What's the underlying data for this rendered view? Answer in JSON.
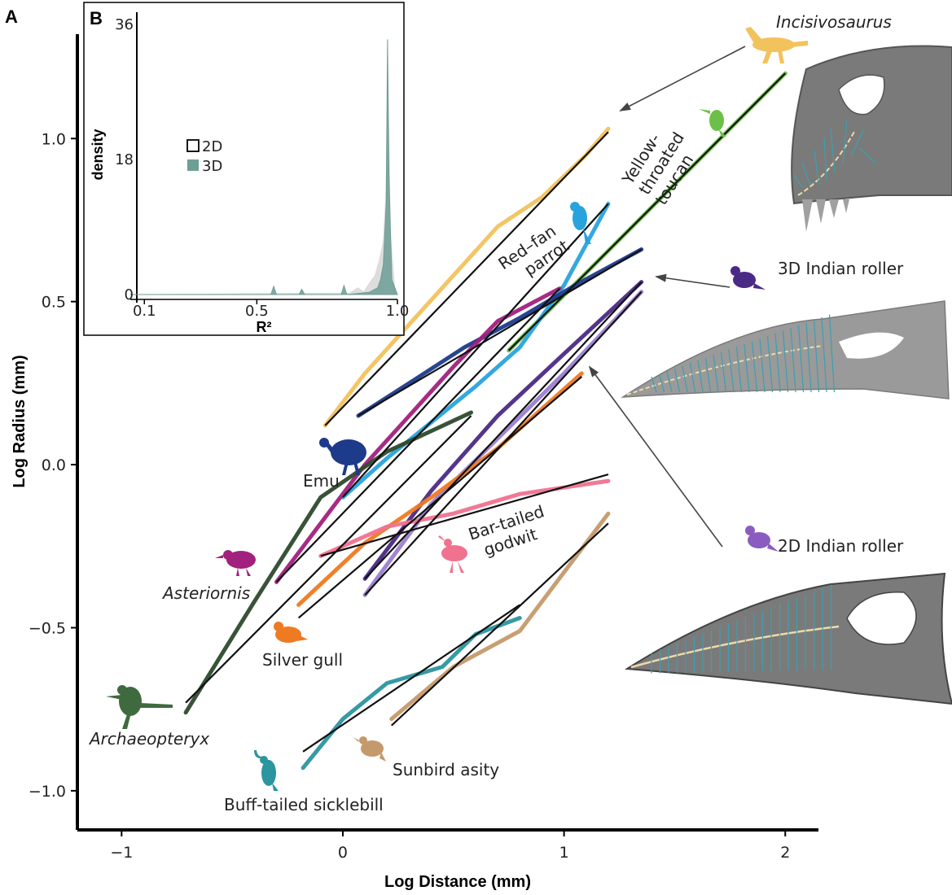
{
  "panel_a": {
    "letter": "A"
  },
  "panel_b": {
    "letter": "B"
  },
  "chart_data": [
    {
      "type": "line",
      "xlabel": "Log Distance (mm)",
      "ylabel": "Log Radius (mm)",
      "xlim": [
        -1.2,
        2.15
      ],
      "ylim": [
        -1.12,
        1.32
      ],
      "xticks": [
        -1,
        0,
        1,
        2
      ],
      "xtick_labels": [
        "−1",
        "0",
        "1",
        "2"
      ],
      "yticks": [
        -1.0,
        -0.5,
        0.0,
        0.5,
        1.0
      ],
      "ytick_labels": [
        "−1.0",
        "−0.5",
        "0.0",
        "0.5",
        "1.0"
      ],
      "series": [
        {
          "name": "Incisivosaurus",
          "color": "#f2c25c",
          "x": [
            -0.08,
            0.1,
            0.3,
            0.5,
            0.7,
            0.9,
            1.1,
            1.2
          ],
          "y": [
            0.12,
            0.28,
            0.43,
            0.58,
            0.73,
            0.82,
            0.95,
            1.03
          ],
          "fit_x": [
            -0.08,
            1.2
          ],
          "fit_y": [
            0.12,
            1.02
          ]
        },
        {
          "name": "Yellow-throated toucan",
          "color": "#6cc04a",
          "x": [
            0.75,
            1.0,
            1.25,
            1.5,
            1.75,
            2.0
          ],
          "y": [
            0.35,
            0.52,
            0.69,
            0.86,
            1.03,
            1.2
          ],
          "fit_x": [
            0.75,
            2.0
          ],
          "fit_y": [
            0.35,
            1.2
          ]
        },
        {
          "name": "Red-fan parrot",
          "color": "#29a3dd",
          "x": [
            0.0,
            0.2,
            0.4,
            0.6,
            0.8,
            1.0,
            1.2
          ],
          "y": [
            -0.1,
            0.02,
            0.13,
            0.24,
            0.36,
            0.55,
            0.8
          ],
          "fit_x": [
            0.0,
            1.2
          ],
          "fit_y": [
            -0.1,
            0.8
          ]
        },
        {
          "name": "Emu",
          "color": "#1e3a8a",
          "x": [
            0.07,
            0.3,
            0.55,
            0.8,
            1.05,
            1.35
          ],
          "y": [
            0.15,
            0.25,
            0.36,
            0.45,
            0.55,
            0.66
          ],
          "fit_x": [
            0.07,
            1.35
          ],
          "fit_y": [
            0.15,
            0.66
          ]
        },
        {
          "name": "Asteriornis",
          "color": "#a2207e",
          "x": [
            -0.3,
            -0.1,
            0.1,
            0.3,
            0.5,
            0.7,
            0.98
          ],
          "y": [
            -0.36,
            -0.18,
            0.0,
            0.15,
            0.3,
            0.44,
            0.54
          ],
          "fit_x": [
            -0.3,
            0.98
          ],
          "fit_y": [
            -0.36,
            0.54
          ]
        },
        {
          "name": "Archaeopteryx",
          "color": "#2d4a2d",
          "x": [
            -0.71,
            -0.4,
            -0.1,
            0.2,
            0.58
          ],
          "y": [
            -0.76,
            -0.42,
            -0.1,
            0.04,
            0.16
          ],
          "fit_x": [
            -0.71,
            0.58
          ],
          "fit_y": [
            -0.73,
            0.15
          ]
        },
        {
          "name": "3D Indian roller",
          "color": "#4b2a85",
          "x": [
            0.1,
            0.4,
            0.7,
            1.0,
            1.35
          ],
          "y": [
            -0.35,
            -0.08,
            0.15,
            0.34,
            0.56
          ],
          "fit_x": [
            0.1,
            1.35
          ],
          "fit_y": [
            -0.35,
            0.56
          ]
        },
        {
          "name": "2D Indian roller",
          "color": "#9b7fd0",
          "x": [
            0.1,
            0.4,
            0.7,
            1.0,
            1.35
          ],
          "y": [
            -0.4,
            -0.12,
            0.08,
            0.28,
            0.53
          ],
          "fit_x": [
            0.1,
            1.35
          ],
          "fit_y": [
            -0.4,
            0.53
          ]
        },
        {
          "name": "Silver gull",
          "color": "#ee7a22",
          "x": [
            -0.2,
            0.1,
            0.4,
            0.7,
            1.08
          ],
          "y": [
            -0.43,
            -0.24,
            -0.1,
            0.05,
            0.28
          ],
          "fit_x": [
            -0.2,
            1.08
          ],
          "fit_y": [
            -0.47,
            0.27
          ]
        },
        {
          "name": "Bar-tailed godwit",
          "color": "#f0728f",
          "x": [
            -0.1,
            0.2,
            0.5,
            0.8,
            1.2
          ],
          "y": [
            -0.28,
            -0.19,
            -0.15,
            -0.09,
            -0.05
          ],
          "fit_x": [
            -0.1,
            1.2
          ],
          "fit_y": [
            -0.28,
            -0.03
          ]
        },
        {
          "name": "Buff-tailed sicklebill",
          "color": "#2b95a0",
          "x": [
            -0.18,
            0.0,
            0.2,
            0.45,
            0.6,
            0.8
          ],
          "y": [
            -0.93,
            -0.78,
            -0.67,
            -0.62,
            -0.52,
            -0.47
          ],
          "fit_x": [
            -0.18,
            0.8
          ],
          "fit_y": [
            -0.88,
            -0.43
          ]
        },
        {
          "name": "Sunbird asity",
          "color": "#c49a6c",
          "x": [
            0.22,
            0.5,
            0.8,
            1.0,
            1.2
          ],
          "y": [
            -0.78,
            -0.62,
            -0.51,
            -0.33,
            -0.15
          ],
          "fit_x": [
            0.22,
            1.2
          ],
          "fit_y": [
            -0.8,
            -0.18
          ]
        }
      ],
      "annotations": [
        {
          "text": "Incisivosaurus",
          "italic": true
        },
        {
          "text": "Yellow-\nthroated\ntoucan",
          "italic": false
        },
        {
          "text": "Red–fan\nparrot",
          "italic": false
        },
        {
          "text": "3D Indian roller",
          "italic": false
        },
        {
          "text": "2D Indian roller",
          "italic": false
        },
        {
          "text": "Emu",
          "italic": false
        },
        {
          "text": "Bar-tailed\ngodwit",
          "italic": false
        },
        {
          "text": "Asteriornis",
          "italic": true
        },
        {
          "text": "Silver gull",
          "italic": false
        },
        {
          "text": "Archaeopteryx",
          "italic": true
        },
        {
          "text": "Sunbird asity",
          "italic": false
        },
        {
          "text": "Buff-tailed sicklebill",
          "italic": false
        }
      ]
    },
    {
      "type": "area",
      "xlabel": "R²",
      "ylabel": "density",
      "xlim": [
        0.05,
        1.0
      ],
      "ylim": [
        0,
        36
      ],
      "xticks": [
        0.1,
        0.5,
        1.0
      ],
      "xtick_labels": [
        "0.1",
        "0.5",
        "1.0"
      ],
      "yticks": [
        0,
        18,
        36
      ],
      "ytick_labels": [
        "0",
        "18",
        "36"
      ],
      "legend_position": "middle-left",
      "series": [
        {
          "name": "2D",
          "color": "#d9d9d9",
          "x": [
            0.05,
            0.83,
            0.86,
            0.88,
            0.9,
            0.92,
            0.935,
            0.95,
            0.96,
            0.965,
            0.97,
            0.975,
            0.99,
            1.0
          ],
          "y": [
            0,
            0.2,
            0.9,
            0.3,
            1.5,
            2.5,
            4.5,
            7,
            14,
            30,
            20,
            8,
            1,
            0
          ]
        },
        {
          "name": "3D",
          "color": "#6f9e96",
          "x": [
            0.05,
            0.55,
            0.56,
            0.57,
            0.65,
            0.66,
            0.67,
            0.8,
            0.81,
            0.82,
            0.9,
            0.93,
            0.94,
            0.95,
            0.96,
            0.965,
            0.97,
            0.98,
            1.0
          ],
          "y": [
            0,
            0,
            1.1,
            0,
            0,
            0.7,
            0,
            0,
            1.2,
            0,
            0.3,
            0.9,
            2,
            4,
            12,
            34,
            16,
            2,
            0
          ]
        }
      ]
    }
  ]
}
